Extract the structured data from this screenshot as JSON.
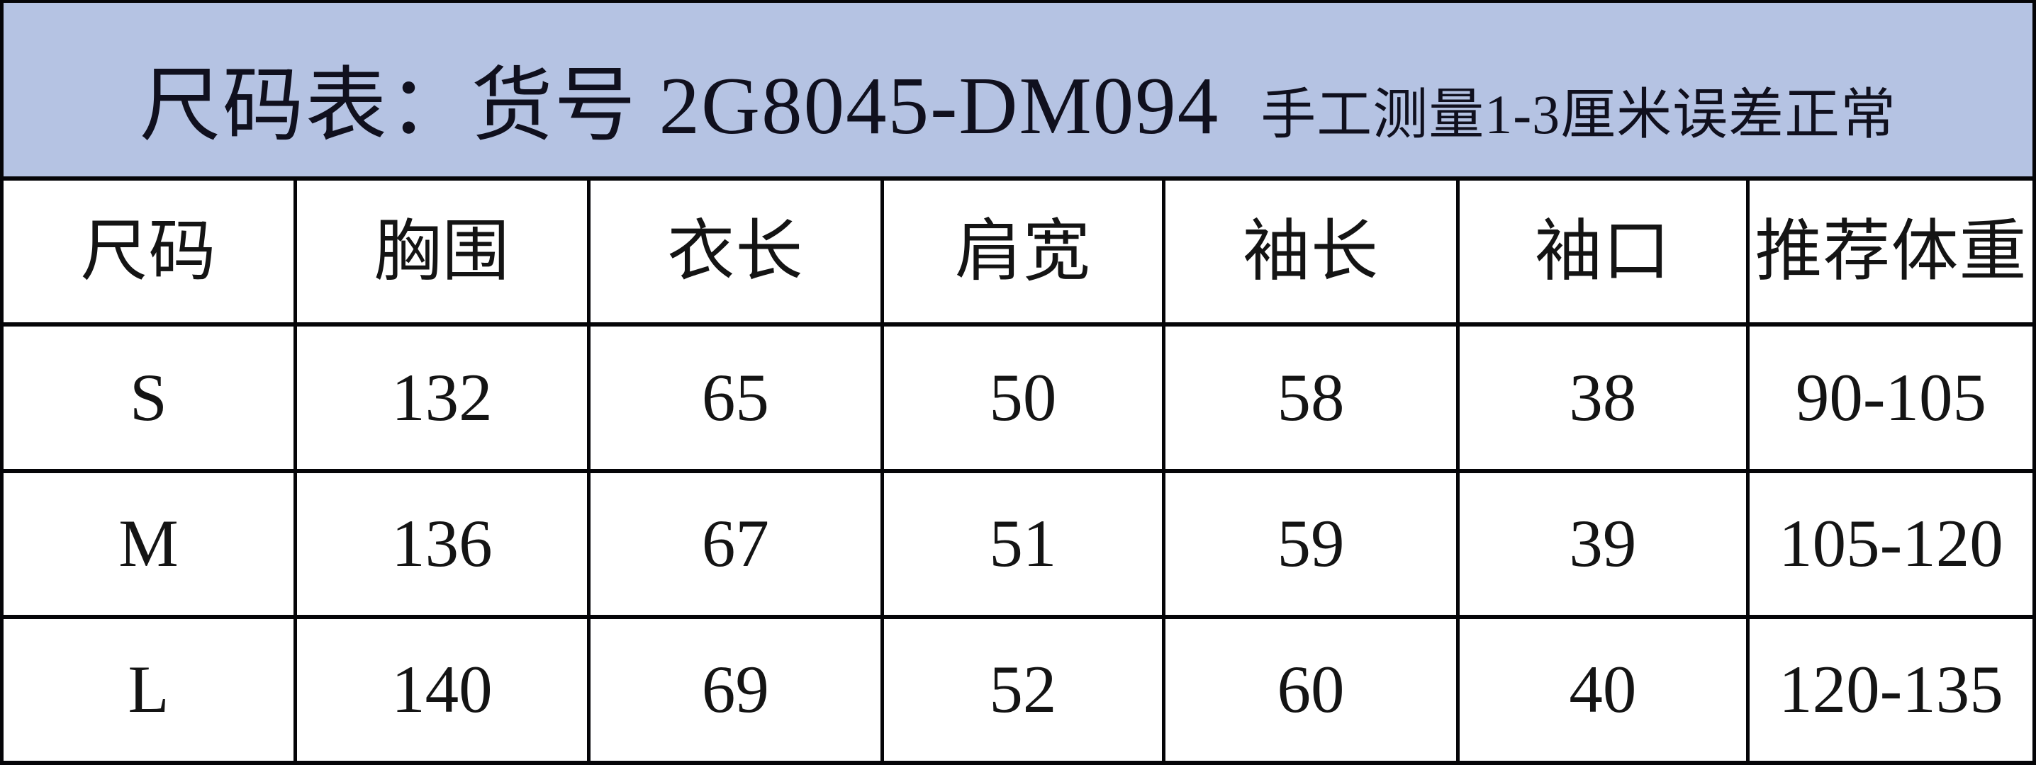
{
  "title": {
    "main": "尺码表：货号 2G8045-DM094",
    "note": "手工测量1-3厘米误差正常"
  },
  "size_chart": {
    "columns": [
      "尺码",
      "胸围",
      "衣长",
      "肩宽",
      "袖长",
      "袖口",
      "推荐体重"
    ],
    "rows": [
      [
        "S",
        "132",
        "65",
        "50",
        "58",
        "38",
        "90-105"
      ],
      [
        "M",
        "136",
        "67",
        "51",
        "59",
        "39",
        "105-120"
      ],
      [
        "L",
        "140",
        "69",
        "52",
        "60",
        "40",
        "120-135"
      ]
    ]
  },
  "colors": {
    "header_bg": "#b5c3e3",
    "border": "#050508",
    "cell_bg": "#ffffff",
    "text": "#141414",
    "title_text": "#10101e"
  }
}
